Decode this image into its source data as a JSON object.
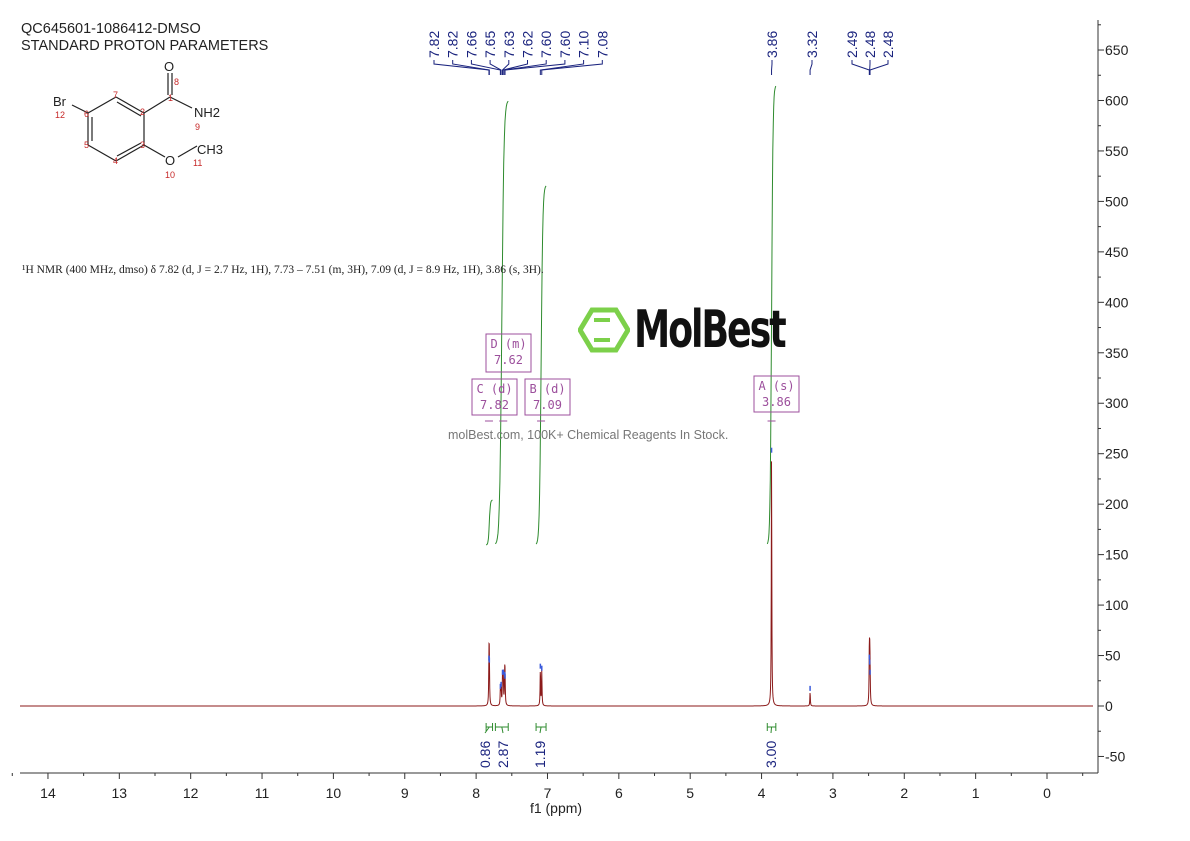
{
  "header": {
    "sample_id": "QC645601-1086412-DMSO",
    "experiment": "STANDARD PROTON PARAMETERS"
  },
  "structure": {
    "atoms": [
      "O",
      "Br",
      "NH2",
      "O",
      "CH3"
    ],
    "atom_numbers": [
      "1",
      "2",
      "3",
      "4",
      "5",
      "6",
      "7",
      "8",
      "9",
      "10",
      "11",
      "12"
    ]
  },
  "summary_text": "¹H NMR (400 MHz, dmso) δ 7.82 (d, J = 2.7 Hz, 1H), 7.73 – 7.51 (m, 3H), 7.09 (d, J = 8.9 Hz, 1H), 3.86 (s, 3H).",
  "watermark": {
    "logo": "MolBest",
    "tagline": "molBest.com, 100K+ Chemical Reagents In Stock."
  },
  "colors": {
    "spectrum": "#8b1a1a",
    "peak_labels": "#1a237e",
    "integrals": "#2e8b2e",
    "multiplet_boxes": "#9c4f9c",
    "axis": "#333333"
  },
  "chart_data": {
    "type": "line",
    "xlabel": "f1 (ppm)",
    "ylabel": "",
    "xlim": [
      14.4,
      -0.65
    ],
    "ylim": [
      -65,
      680
    ],
    "x_ticks": [
      14,
      13,
      12,
      11,
      10,
      9,
      8,
      7,
      6,
      5,
      4,
      3,
      2,
      1,
      0
    ],
    "y_ticks": [
      -50,
      0,
      50,
      100,
      150,
      200,
      250,
      300,
      350,
      400,
      450,
      500,
      550,
      600,
      650
    ],
    "grid": false,
    "peaks": [
      {
        "ppm": 7.82,
        "intensity": 44
      },
      {
        "ppm": 7.815,
        "intensity": 42
      },
      {
        "ppm": 7.66,
        "intensity": 16
      },
      {
        "ppm": 7.65,
        "intensity": 18
      },
      {
        "ppm": 7.63,
        "intensity": 30
      },
      {
        "ppm": 7.62,
        "intensity": 30
      },
      {
        "ppm": 7.6,
        "intensity": 28
      },
      {
        "ppm": 7.595,
        "intensity": 26
      },
      {
        "ppm": 7.1,
        "intensity": 36
      },
      {
        "ppm": 7.08,
        "intensity": 34
      },
      {
        "ppm": 3.86,
        "intensity": 250
      },
      {
        "ppm": 3.32,
        "intensity": 14
      },
      {
        "ppm": 2.49,
        "intensity": 45
      },
      {
        "ppm": 2.485,
        "intensity": 40
      },
      {
        "ppm": 2.48,
        "intensity": 30
      }
    ],
    "peak_labels": [
      "7.82",
      "7.82",
      "7.66",
      "7.65",
      "7.63",
      "7.62",
      "7.60",
      "7.60",
      "7.10",
      "7.08",
      "3.86",
      "3.32",
      "2.49",
      "2.48",
      "2.48"
    ],
    "integrals": [
      {
        "from": 7.86,
        "to": 7.77,
        "value": "0.86"
      },
      {
        "from": 7.73,
        "to": 7.55,
        "value": "2.87"
      },
      {
        "from": 7.16,
        "to": 7.02,
        "value": "1.19"
      },
      {
        "from": 3.92,
        "to": 3.8,
        "value": "3.00"
      }
    ],
    "multiplets": [
      {
        "letter": "D",
        "type": "m",
        "shift": "7.62"
      },
      {
        "letter": "C",
        "type": "d",
        "shift": "7.82"
      },
      {
        "letter": "B",
        "type": "d",
        "shift": "7.09"
      },
      {
        "letter": "A",
        "type": "s",
        "shift": "3.86"
      }
    ]
  }
}
